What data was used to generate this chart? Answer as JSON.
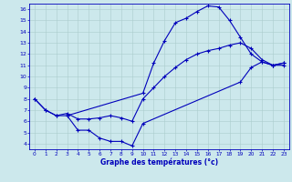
{
  "xlabel": "Graphe des températures (°c)",
  "bg_color": "#cce8ec",
  "line_color": "#0000bb",
  "grid_color": "#aacccc",
  "xlim": [
    -0.5,
    23.5
  ],
  "ylim": [
    3.5,
    16.5
  ],
  "yticks": [
    4,
    5,
    6,
    7,
    8,
    9,
    10,
    11,
    12,
    13,
    14,
    15,
    16
  ],
  "xticks": [
    0,
    1,
    2,
    3,
    4,
    5,
    6,
    7,
    8,
    9,
    10,
    11,
    12,
    13,
    14,
    15,
    16,
    17,
    18,
    19,
    20,
    21,
    22,
    23
  ],
  "line1_x": [
    0,
    1,
    2,
    3,
    10,
    11,
    12,
    13,
    14,
    15,
    16,
    17,
    18,
    19,
    20,
    21,
    22,
    23
  ],
  "line1_y": [
    8.0,
    7.0,
    6.5,
    6.5,
    8.5,
    11.2,
    13.2,
    14.8,
    15.2,
    15.8,
    16.3,
    16.2,
    15.0,
    13.5,
    12.0,
    11.3,
    11.0,
    11.0
  ],
  "line2_x": [
    0,
    1,
    2,
    3,
    4,
    5,
    6,
    7,
    8,
    9,
    10,
    11,
    12,
    13,
    14,
    15,
    16,
    17,
    18,
    19,
    20,
    21,
    22,
    23
  ],
  "line2_y": [
    8.0,
    7.0,
    6.5,
    6.7,
    6.2,
    6.2,
    6.3,
    6.5,
    6.3,
    6.0,
    8.0,
    9.0,
    10.0,
    10.8,
    11.5,
    12.0,
    12.3,
    12.5,
    12.8,
    13.0,
    12.5,
    11.5,
    11.0,
    11.2
  ],
  "line3_x": [
    3,
    4,
    5,
    6,
    7,
    8,
    9,
    10,
    19,
    20,
    21,
    22,
    23
  ],
  "line3_y": [
    6.5,
    5.2,
    5.2,
    4.5,
    4.2,
    4.2,
    3.8,
    5.8,
    9.5,
    10.8,
    11.3,
    11.0,
    11.2
  ]
}
